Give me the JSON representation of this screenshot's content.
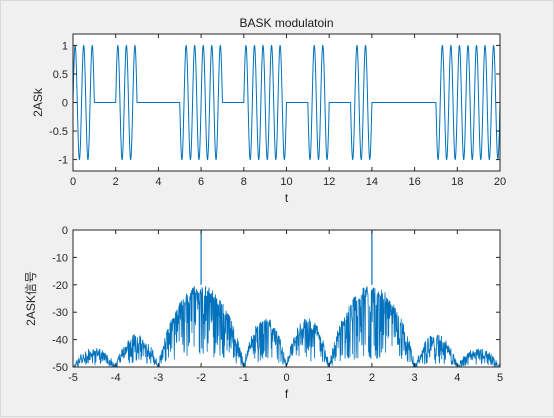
{
  "chart_data": [
    {
      "type": "line",
      "title": "BASK modulatoin",
      "xlabel": "t",
      "ylabel": "2ASk",
      "xlim": [
        0,
        20
      ],
      "ylim": [
        -1.2,
        1.2
      ],
      "xticks": [
        0,
        2,
        4,
        6,
        8,
        10,
        12,
        14,
        16,
        18,
        20
      ],
      "yticks": [
        -1,
        -0.5,
        0,
        0.5,
        1
      ],
      "bits": [
        1,
        0,
        1,
        0,
        0,
        1,
        1,
        0,
        1,
        1,
        0,
        1,
        0,
        1,
        0,
        0,
        0,
        1,
        1,
        1
      ],
      "bit_duration": 1,
      "carrier_cycles_per_bit": 2.5,
      "series": [
        {
          "color": "#0072bd",
          "style": "2ASK = bit(t)·sin(2π·2.5·t)"
        }
      ]
    },
    {
      "type": "line",
      "title": "",
      "xlabel": "f",
      "ylabel": "2ASK信号",
      "xlim": [
        -5,
        5
      ],
      "ylim": [
        -50,
        0
      ],
      "xticks": [
        -5,
        -4,
        -3,
        -2,
        -1,
        0,
        1,
        2,
        3,
        4,
        5
      ],
      "yticks": [
        -50,
        -40,
        -30,
        -20,
        -10,
        0
      ],
      "carrier_peaks": [
        {
          "f": -2,
          "value": 0
        },
        {
          "f": 2,
          "value": 0
        }
      ],
      "envelope_lobes": [
        {
          "from": -5,
          "to": -4,
          "peak": -43
        },
        {
          "from": -4,
          "to": -3,
          "peak": -38
        },
        {
          "from": -3,
          "to": -1,
          "peak": -20
        },
        {
          "from": -1,
          "to": 0,
          "peak": -32
        },
        {
          "from": 0,
          "to": 1,
          "peak": -32
        },
        {
          "from": 1,
          "to": 3,
          "peak": -20
        },
        {
          "from": 3,
          "to": 4,
          "peak": -38
        },
        {
          "from": 4,
          "to": 5,
          "peak": -43
        }
      ],
      "series": [
        {
          "color": "#0072bd"
        }
      ]
    }
  ],
  "colors": {
    "line": "#0072bd",
    "axes": "#262626",
    "plot_bg": "#ffffff",
    "figure_bg": "#f0f0f0"
  }
}
